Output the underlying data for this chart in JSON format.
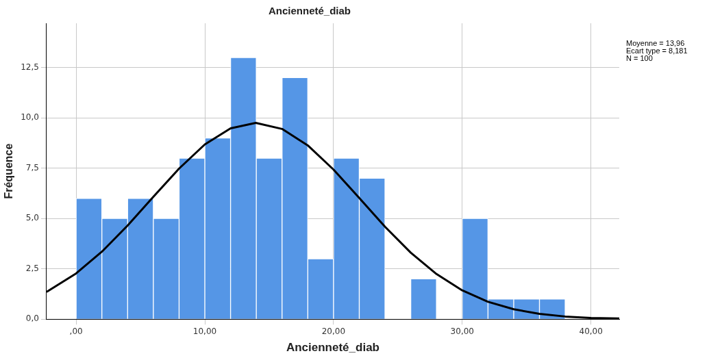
{
  "chart_data": {
    "type": "histogram",
    "title": "Ancienneté_diab",
    "xlabel": "Ancienneté_diab",
    "ylabel": "Fréquence",
    "bins": [
      0,
      2,
      4,
      6,
      8,
      10,
      12,
      14,
      16,
      18,
      20,
      22,
      24,
      26,
      28,
      30,
      32,
      34,
      36,
      38
    ],
    "values": [
      6,
      5,
      6,
      5,
      8,
      9,
      13,
      8,
      12,
      3,
      8,
      7,
      0,
      2,
      0,
      5,
      1,
      1,
      1
    ],
    "color": "#5596e6",
    "series": [
      {
        "type": "line",
        "color": "#000000",
        "x": [
          -2.3,
          0,
          2,
          4,
          6,
          8,
          10,
          12,
          13.96,
          16,
          18,
          20,
          22,
          24,
          26,
          28,
          30,
          32,
          34,
          36,
          38,
          40,
          42.2
        ],
        "values": [
          1.35,
          2.27,
          3.35,
          4.65,
          6.08,
          7.48,
          8.68,
          9.48,
          9.75,
          9.45,
          8.63,
          7.43,
          6.02,
          4.59,
          3.3,
          2.24,
          1.43,
          0.86,
          0.49,
          0.26,
          0.13,
          0.06,
          0.03
        ]
      }
    ],
    "xlim": [
      -2.3,
      42.2
    ],
    "xticks": [
      {
        "value": 0,
        "label": ",00"
      },
      {
        "value": 10,
        "label": "10,00"
      },
      {
        "value": 20,
        "label": "20,00"
      },
      {
        "value": 30,
        "label": "30,00"
      },
      {
        "value": 40,
        "label": "40,00"
      }
    ],
    "ylim": [
      0,
      14.7
    ],
    "yticks": [
      {
        "value": 0,
        "label": "0,0"
      },
      {
        "value": 2.5,
        "label": "2,5"
      },
      {
        "value": 5,
        "label": "5,0"
      },
      {
        "value": 7.5,
        "label": "7,5"
      },
      {
        "value": 10,
        "label": "10,0"
      },
      {
        "value": 12.5,
        "label": "12,5"
      }
    ],
    "grid": true,
    "annotations": [
      "Moyenne = 13,96",
      "Ecart type = 8,181",
      "N = 100"
    ]
  }
}
